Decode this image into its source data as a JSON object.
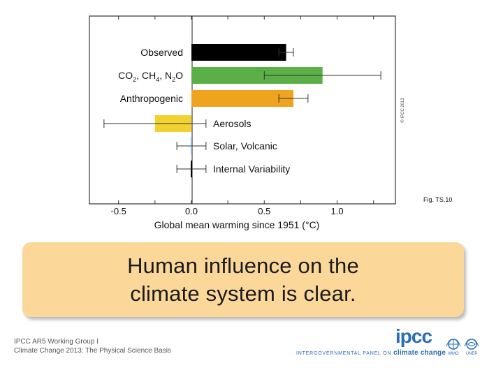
{
  "chart_data": {
    "type": "bar",
    "orientation": "horizontal",
    "xlabel": "Global mean warming since 1951 (°C)",
    "xlim": [
      -0.7,
      1.4
    ],
    "xticks": [
      -0.5,
      0.0,
      0.5,
      1.0
    ],
    "xtick_labels": [
      "-0.5",
      "0.0",
      "0.5",
      "1.0"
    ],
    "categories": [
      {
        "label": "Observed",
        "value": 0.65,
        "low": 0.6,
        "high": 0.7,
        "color": "#000000",
        "label_side": "left"
      },
      {
        "label": "CO2, CH4, N2O",
        "label_parts": [
          [
            "CO",
            "2",
            ", CH",
            "4",
            ", N",
            "2",
            "O"
          ]
        ],
        "value": 0.9,
        "low": 0.5,
        "high": 1.3,
        "color": "#5ab046",
        "label_side": "left"
      },
      {
        "label": "Anthropogenic",
        "value": 0.7,
        "low": 0.6,
        "high": 0.8,
        "color": "#f0a31e",
        "label_side": "left"
      },
      {
        "label": "Aerosols",
        "value": -0.25,
        "low": -0.6,
        "high": 0.1,
        "color": "#f2d230",
        "label_side": "right"
      },
      {
        "label": "Solar, Volcanic",
        "value": 0.0,
        "low": -0.1,
        "high": 0.1,
        "color": "#8ab4e0",
        "label_side": "right"
      },
      {
        "label": "Internal Variability",
        "value": 0.0,
        "low": -0.1,
        "high": 0.1,
        "color": "#000000",
        "label_side": "right"
      }
    ],
    "grid": false,
    "copyright": "© IPCC 2013",
    "figure_label": "Fig. TS.10"
  },
  "callout": {
    "line1": "Human influence on the",
    "line2": "climate system is clear.",
    "background": "#fbd79a"
  },
  "footer": {
    "line1": "IPCC AR5 Working Group I",
    "line2": "Climate Change 2013: The Physical Science Basis",
    "ipcc_logo": "ipcc",
    "ipcc_full_pre": "INTERGOVERNMENTAL PANEL ON",
    "ipcc_full_post": "climate change",
    "wmo": "WMO",
    "unep": "UNEP",
    "accent": "#2a6db5"
  }
}
